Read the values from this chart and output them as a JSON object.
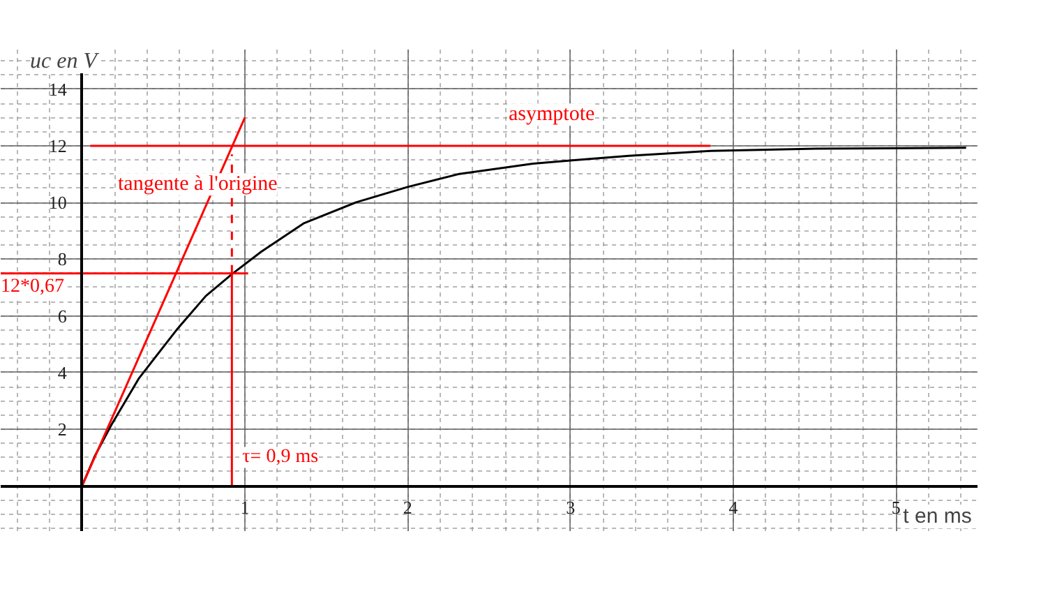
{
  "chart_data": {
    "type": "line",
    "xlabel": "t  en ms",
    "ylabel": "uc en V",
    "xlim": [
      -0.5,
      5.5
    ],
    "ylim": [
      -1.6,
      15.4
    ],
    "xticks": [
      1,
      2,
      3,
      4,
      5
    ],
    "yticks": [
      2,
      4,
      6,
      8,
      10,
      12,
      14
    ],
    "grid": true,
    "marker": "none",
    "series": [
      {
        "color": "#000000",
        "line_style": "solid",
        "x": [
          0,
          0.08,
          0.18,
          0.35,
          0.58,
          0.76,
          0.92,
          1.1,
          1.36,
          1.68,
          2.0,
          2.31,
          2.77,
          3.01,
          3.36,
          3.86,
          4.51,
          5.43
        ],
        "values": [
          0,
          1.07,
          2.15,
          3.8,
          5.5,
          6.7,
          7.47,
          8.26,
          9.26,
          10.0,
          10.55,
          11.0,
          11.37,
          11.49,
          11.65,
          11.82,
          11.9,
          11.93
        ]
      },
      {
        "color": "#ff0000",
        "line_style": "solid",
        "x": [
          0,
          1.0
        ],
        "values": [
          0,
          13
        ]
      },
      {
        "color": "#ff0000",
        "line_style": "solid",
        "x": [
          0.05,
          3.86
        ],
        "values": [
          12,
          12
        ]
      },
      {
        "color": "#ff0000",
        "line_style": "solid",
        "x": [
          -0.5,
          1.02
        ],
        "values": [
          7.5,
          7.5
        ]
      },
      {
        "color": "#ff0000",
        "line_style": "solid",
        "x": [
          0.92,
          0.92
        ],
        "values": [
          0,
          7.5
        ]
      },
      {
        "color": "#ff0000",
        "line_style": "dashed",
        "x": [
          0.92,
          0.92
        ],
        "values": [
          7.5,
          11.7
        ]
      }
    ],
    "annotations": [
      "asymptote",
      "tangente à l'origine",
      {
        "text": "12*0,67",
        "x": -0.5,
        "y": 7.5
      },
      {
        "text": "τ= 0,9 ms",
        "x": 0.95,
        "y": 1.0
      }
    ]
  }
}
